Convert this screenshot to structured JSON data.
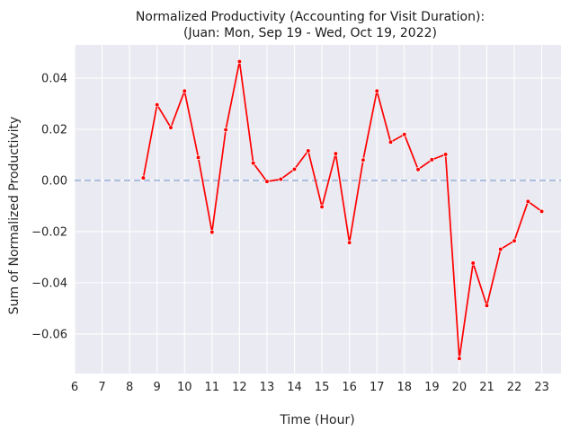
{
  "chart_data": {
    "type": "line",
    "title": "Normalized Productivity (Accounting for Visit Duration):",
    "subtitle": "(Juan: Mon, Sep 19 - Wed, Oct 19, 2022)",
    "xlabel": "Time (Hour)",
    "ylabel": "Sum of Normalized Productivity",
    "xlim": [
      6,
      23.7
    ],
    "ylim": [
      -0.0755,
      0.053
    ],
    "x_ticks": [
      6,
      7,
      8,
      9,
      10,
      11,
      12,
      13,
      14,
      15,
      16,
      17,
      18,
      19,
      20,
      21,
      22,
      23
    ],
    "x_tick_labels": [
      "6",
      "7",
      "8",
      "9",
      "10",
      "11",
      "12",
      "13",
      "14",
      "15",
      "16",
      "17",
      "18",
      "19",
      "20",
      "21",
      "22",
      "23"
    ],
    "y_ticks": [
      0.04,
      0.02,
      0.0,
      -0.02,
      -0.04,
      -0.06
    ],
    "y_tick_labels": [
      "0.04",
      "0.02",
      "0.00",
      "−0.02",
      "−0.04",
      "−0.06"
    ],
    "grid": true,
    "reference_line": {
      "y": 0.0,
      "style": "dashed",
      "color": "#9db4da"
    },
    "series": [
      {
        "color": "#ff0000",
        "marker": "o",
        "x": [
          8.5,
          9.0,
          9.5,
          10.0,
          10.5,
          11.0,
          11.5,
          12.0,
          12.5,
          13.0,
          13.5,
          14.0,
          14.5,
          15.0,
          15.5,
          16.0,
          16.5,
          17.0,
          17.5,
          18.0,
          18.5,
          19.0,
          19.5,
          20.0,
          20.5,
          21.0,
          21.5,
          22.0,
          22.5,
          23.0
        ],
        "y": [
          0.001,
          0.0296,
          0.0207,
          0.035,
          0.009,
          -0.0202,
          0.0198,
          0.0465,
          0.0068,
          -0.0004,
          0.0005,
          0.0044,
          0.0116,
          -0.0103,
          0.0105,
          -0.0243,
          0.008,
          0.035,
          0.015,
          0.018,
          0.0043,
          0.0081,
          0.0102,
          -0.0696,
          -0.0323,
          -0.0489,
          -0.0269,
          -0.0236,
          -0.0082,
          -0.0121
        ]
      }
    ]
  }
}
